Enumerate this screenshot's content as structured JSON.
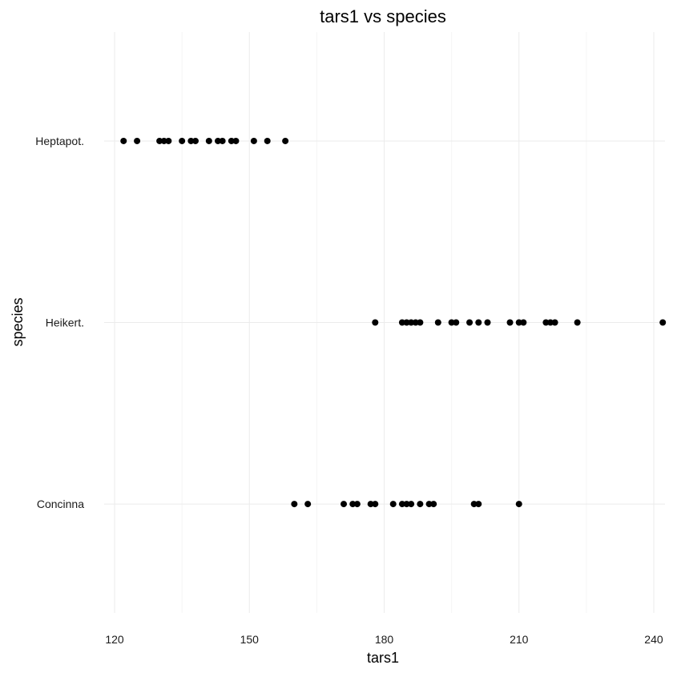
{
  "chart_data": {
    "type": "scatter",
    "title": "tars1 vs species",
    "xlabel": "tars1",
    "ylabel": "species",
    "xlim": [
      115,
      242.5
    ],
    "x_ticks": [
      120,
      150,
      180,
      210,
      240
    ],
    "x_minor_ticks": [
      135,
      165,
      195,
      225
    ],
    "categories": [
      "Concinna",
      "Heikert.",
      "Heptapot."
    ],
    "grid": true,
    "legend": "none",
    "point_color": "#000000",
    "grid_color": "#ebebeb",
    "series": [
      {
        "category": "Heptapot.",
        "x": [
          122,
          125,
          130,
          131,
          132,
          135,
          137,
          138,
          141,
          143,
          144,
          146,
          147,
          151,
          154,
          158
        ]
      },
      {
        "category": "Heikert.",
        "x": [
          178,
          184,
          185,
          186,
          187,
          188,
          192,
          195,
          196,
          199,
          201,
          203,
          208,
          210,
          211,
          216,
          217,
          218,
          223,
          242
        ]
      },
      {
        "category": "Concinna",
        "x": [
          160,
          163,
          171,
          173,
          174,
          177,
          178,
          182,
          184,
          185,
          186,
          188,
          190,
          191,
          200,
          201,
          210
        ]
      }
    ]
  }
}
